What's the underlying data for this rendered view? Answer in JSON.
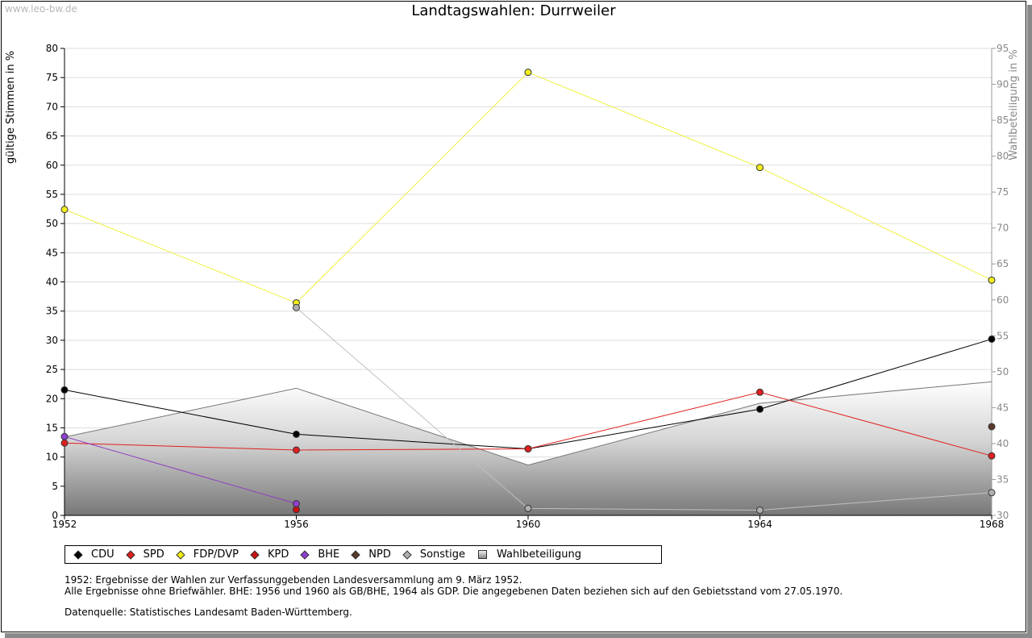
{
  "watermark": "www.leo-bw.de",
  "chart_data": {
    "type": "line",
    "title": "Landtagswahlen: Durrweiler",
    "ylabel": "gültige Stimmen in %",
    "y2label": "Wahlbeteiligung in %",
    "ylim": [
      0,
      80
    ],
    "y2lim": [
      30,
      95
    ],
    "yticks": [
      0,
      5,
      10,
      15,
      20,
      25,
      30,
      35,
      40,
      45,
      50,
      55,
      60,
      65,
      70,
      75,
      80
    ],
    "y2ticks": [
      30,
      35,
      40,
      45,
      50,
      55,
      60,
      65,
      70,
      75,
      80,
      85,
      90,
      95
    ],
    "categories": [
      "1952",
      "1956",
      "1960",
      "1964",
      "1968"
    ],
    "area": {
      "name": "Wahlbeteiligung",
      "axis": "right",
      "values": [
        40.9,
        47.7,
        37.0,
        45.6,
        48.6
      ],
      "color": "#999999"
    },
    "series": [
      {
        "name": "CDU",
        "color": "#000000",
        "marker": "#000000",
        "values": [
          21.5,
          13.9,
          11.4,
          18.2,
          30.2
        ]
      },
      {
        "name": "SPD",
        "color": "#e02020",
        "marker": "#e02020",
        "values": [
          12.4,
          11.2,
          11.4,
          21.1,
          10.2
        ]
      },
      {
        "name": "FDP/DVP",
        "color": "#f0f040",
        "marker": "#f2ee1a",
        "values": [
          52.4,
          36.4,
          75.9,
          59.6,
          40.3
        ]
      },
      {
        "name": "KPD",
        "color": "#cc0000",
        "marker": "#cc1010",
        "values": [
          null,
          1.0,
          null,
          null,
          null
        ]
      },
      {
        "name": "BHE",
        "color": "#9040c0",
        "marker": "#9040d0",
        "values": [
          13.5,
          2.0,
          null,
          null,
          null
        ]
      },
      {
        "name": "NPD",
        "color": "#5a3a2a",
        "marker": "#5a3a2a",
        "values": [
          null,
          null,
          null,
          null,
          15.2
        ]
      },
      {
        "name": "Sonstige",
        "color": "#c0c0c0",
        "marker": "#b0b0b0",
        "values": [
          null,
          35.6,
          1.2,
          0.9,
          3.9
        ]
      }
    ]
  },
  "legend": {
    "items": [
      "CDU",
      "SPD",
      "FDP/DVP",
      "KPD",
      "BHE",
      "NPD",
      "Sonstige"
    ],
    "colors": [
      "#000000",
      "#e02020",
      "#f2ee1a",
      "#cc1010",
      "#9040d0",
      "#5a3a2a",
      "#b0b0b0"
    ],
    "area_label": "Wahlbeteiligung"
  },
  "notes": {
    "line1": "1952: Ergebnisse der Wahlen zur Verfassunggebenden Landesversammlung am 9. März 1952.",
    "line2": "Alle Ergebnisse ohne Briefwähler. BHE: 1956 und 1960 als GB/BHE, 1964 als GDP. Die angegebenen Daten beziehen sich auf den Gebietsstand vom 27.05.1970.",
    "source": "Datenquelle: Statistisches Landesamt Baden-Württemberg."
  }
}
